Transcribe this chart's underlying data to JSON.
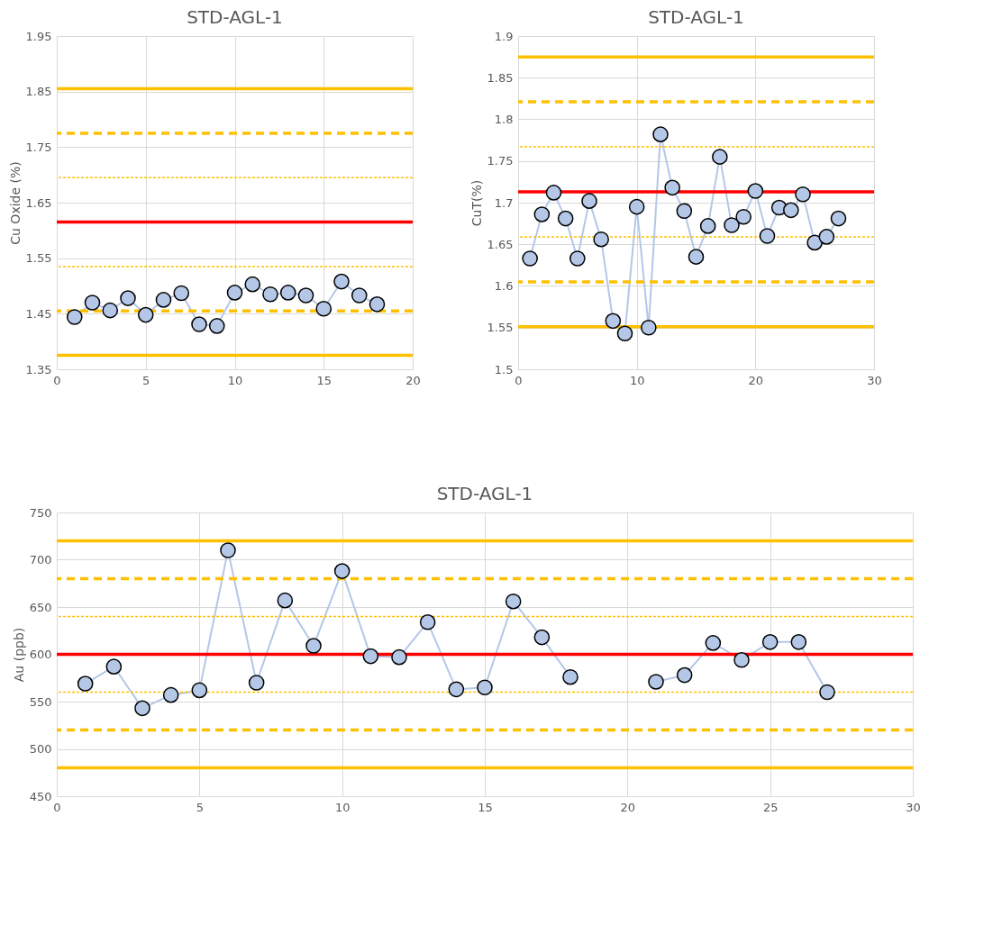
{
  "chart_data": [
    {
      "type": "line",
      "title": "STD-AGL-1",
      "ylabel": "Cu Oxide (%)",
      "x": [
        1,
        2,
        3,
        4,
        5,
        6,
        7,
        8,
        9,
        10,
        11,
        12,
        13,
        14,
        15,
        16,
        17,
        18
      ],
      "series": [
        {
          "color": "#b4c7e7",
          "values": [
            1.444,
            1.47,
            1.456,
            1.478,
            1.448,
            1.475,
            1.487,
            1.431,
            1.428,
            1.488,
            1.503,
            1.485,
            1.488,
            1.483,
            1.459,
            1.508,
            1.483,
            1.467
          ]
        }
      ],
      "xlim": [
        0,
        20
      ],
      "xticks": [
        0,
        5,
        10,
        15,
        20
      ],
      "ylim": [
        1.35,
        1.95
      ],
      "yticks": [
        1.35,
        1.45,
        1.55,
        1.65,
        1.75,
        1.85,
        1.95
      ],
      "grid": true,
      "marker": "circle",
      "line_style": "solid",
      "ref_lines": [
        {
          "axis": "y",
          "value": 1.855,
          "color": "#ffc000",
          "line_style": "solid"
        },
        {
          "axis": "y",
          "value": 1.775,
          "color": "#ffc000",
          "line_style": "dashed"
        },
        {
          "axis": "y",
          "value": 1.695,
          "color": "#ffc000",
          "line_style": "dotted"
        },
        {
          "axis": "y",
          "value": 1.615,
          "color": "#ff0000",
          "line_style": "solid"
        },
        {
          "axis": "y",
          "value": 1.535,
          "color": "#ffc000",
          "line_style": "dotted"
        },
        {
          "axis": "y",
          "value": 1.455,
          "color": "#ffc000",
          "line_style": "dashed"
        },
        {
          "axis": "y",
          "value": 1.375,
          "color": "#ffc000",
          "line_style": "solid"
        }
      ]
    },
    {
      "type": "line",
      "title": "STD-AGL-1",
      "ylabel": "CuT(%)",
      "x": [
        1,
        2,
        3,
        4,
        5,
        6,
        7,
        8,
        9,
        10,
        11,
        12,
        13,
        14,
        15,
        16,
        17,
        18,
        19,
        20,
        21,
        22,
        23,
        24,
        25,
        26,
        27
      ],
      "series": [
        {
          "color": "#b4c7e7",
          "values": [
            1.633,
            1.686,
            1.712,
            1.681,
            1.633,
            1.702,
            1.656,
            1.558,
            1.543,
            1.695,
            1.55,
            1.782,
            1.718,
            1.69,
            1.635,
            1.672,
            1.755,
            1.673,
            1.683,
            1.714,
            1.66,
            1.694,
            1.691,
            1.71,
            1.652,
            1.659,
            1.681
          ]
        }
      ],
      "xlim": [
        0,
        30
      ],
      "xticks": [
        0,
        10,
        20,
        30
      ],
      "ylim": [
        1.5,
        1.9
      ],
      "yticks": [
        1.5,
        1.55,
        1.6,
        1.65,
        1.7,
        1.75,
        1.8,
        1.85,
        1.9
      ],
      "grid": true,
      "marker": "circle",
      "line_style": "solid",
      "ref_lines": [
        {
          "axis": "y",
          "value": 1.875,
          "color": "#ffc000",
          "line_style": "solid"
        },
        {
          "axis": "y",
          "value": 1.821,
          "color": "#ffc000",
          "line_style": "dashed"
        },
        {
          "axis": "y",
          "value": 1.767,
          "color": "#ffc000",
          "line_style": "dotted"
        },
        {
          "axis": "y",
          "value": 1.713,
          "color": "#ff0000",
          "line_style": "solid"
        },
        {
          "axis": "y",
          "value": 1.659,
          "color": "#ffc000",
          "line_style": "dotted"
        },
        {
          "axis": "y",
          "value": 1.605,
          "color": "#ffc000",
          "line_style": "dashed"
        },
        {
          "axis": "y",
          "value": 1.551,
          "color": "#ffc000",
          "line_style": "solid"
        }
      ]
    },
    {
      "type": "line",
      "title": "STD-AGL-1",
      "ylabel": "Au (ppb)",
      "x": [
        1,
        2,
        3,
        4,
        5,
        6,
        7,
        8,
        9,
        10,
        11,
        12,
        13,
        14,
        15,
        16,
        17,
        18,
        19,
        20,
        21,
        22,
        23,
        24,
        25,
        26,
        27
      ],
      "series": [
        {
          "color": "#b4c7e7",
          "values": [
            569,
            587,
            543,
            557,
            562,
            710,
            570,
            657,
            609,
            688,
            598,
            597,
            634,
            563,
            565,
            656,
            618,
            576,
            null,
            null,
            571,
            578,
            612,
            594,
            613,
            613,
            560
          ]
        }
      ],
      "xlim": [
        0,
        30
      ],
      "xticks": [
        0,
        5,
        10,
        15,
        20,
        25,
        30
      ],
      "ylim": [
        450,
        750
      ],
      "yticks": [
        450,
        500,
        550,
        600,
        650,
        700,
        750
      ],
      "grid": true,
      "marker": "circle",
      "line_style": "solid",
      "ref_lines": [
        {
          "axis": "y",
          "value": 720,
          "color": "#ffc000",
          "line_style": "solid"
        },
        {
          "axis": "y",
          "value": 680,
          "color": "#ffc000",
          "line_style": "dashed"
        },
        {
          "axis": "y",
          "value": 640,
          "color": "#ffc000",
          "line_style": "dotted"
        },
        {
          "axis": "y",
          "value": 600,
          "color": "#ff0000",
          "line_style": "solid"
        },
        {
          "axis": "y",
          "value": 560,
          "color": "#ffc000",
          "line_style": "dotted"
        },
        {
          "axis": "y",
          "value": 520,
          "color": "#ffc000",
          "line_style": "dashed"
        },
        {
          "axis": "y",
          "value": 480,
          "color": "#ffc000",
          "line_style": "solid"
        }
      ]
    }
  ]
}
